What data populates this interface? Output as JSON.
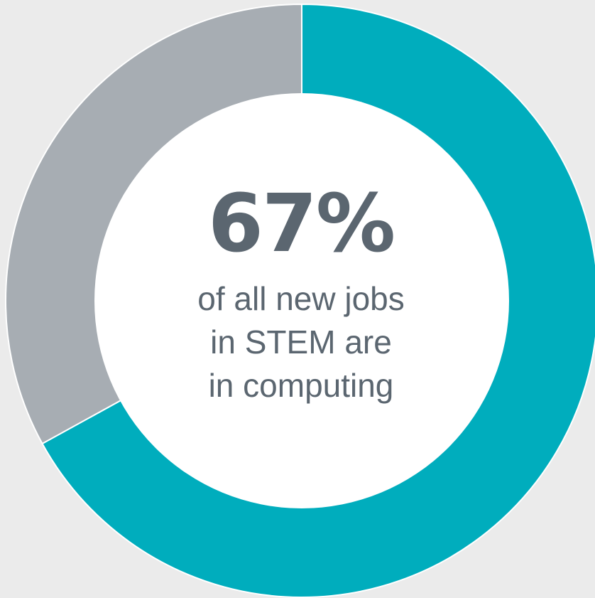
{
  "colors": {
    "background": "#ebebeb",
    "computing": "#00adbd",
    "other": "#a7adb3",
    "center": "#ffffff",
    "text": "#5b6670"
  },
  "chart_data": {
    "type": "pie",
    "title": "",
    "slices": [
      {
        "label": "",
        "value": 67,
        "color": "#00adbd"
      },
      {
        "label": "",
        "value": 33,
        "color": "#a7adb3"
      }
    ],
    "start": "12 o'clock, clockwise",
    "center_value": "67%",
    "center_caption": [
      "of all new jobs",
      "in STEM are",
      "in computing"
    ]
  }
}
